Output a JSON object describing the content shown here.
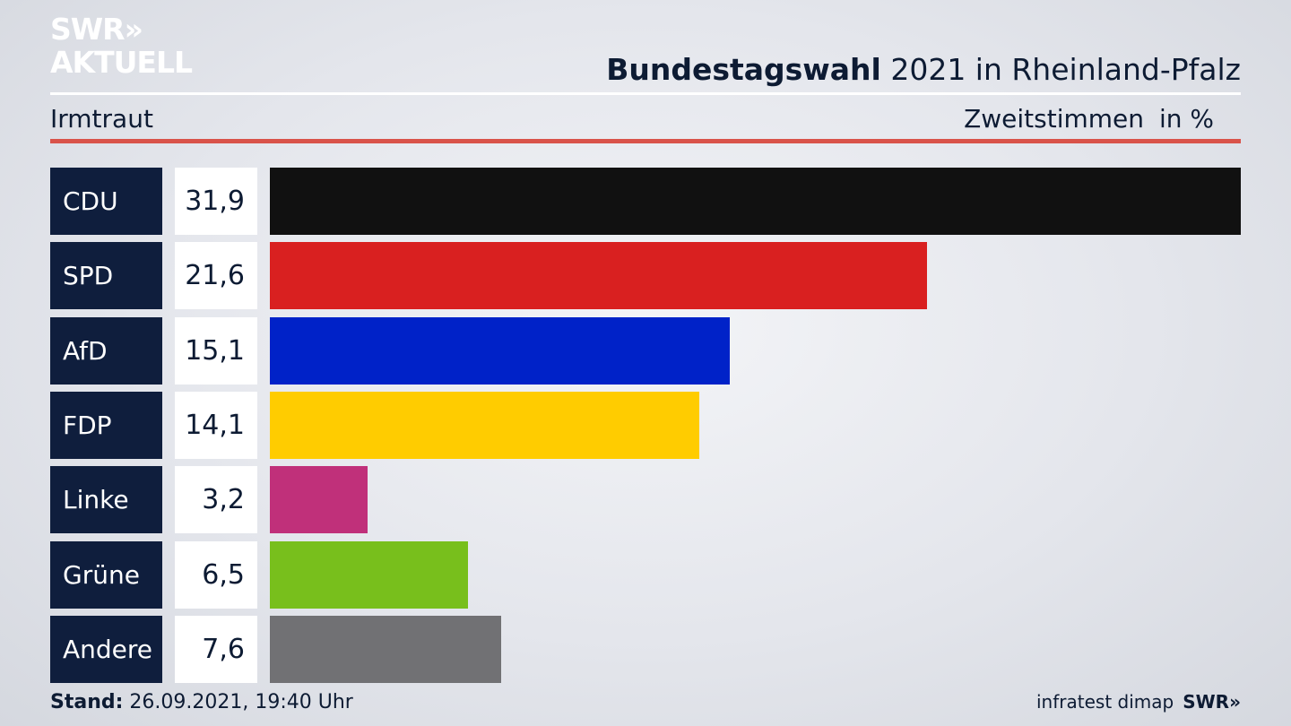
{
  "logo": {
    "line1": "SWR»",
    "line2": "AKTUELL"
  },
  "header": {
    "title_bold": "Bundestagswahl",
    "title_rest": " 2021 in Rheinland-Pfalz",
    "place": "Irmtraut",
    "vote_type": "Zweitstimmen",
    "unit": "in %"
  },
  "footer": {
    "stand_label": "Stand:",
    "stand_value": " 26.09.2021, 19:40 Uhr",
    "source": "infratest dimap",
    "brand": "SWR»"
  },
  "chart_data": {
    "type": "bar",
    "orientation": "horizontal",
    "categories": [
      "CDU",
      "SPD",
      "AfD",
      "FDP",
      "Linke",
      "Grüne",
      "Andere"
    ],
    "values": [
      31.9,
      21.6,
      15.1,
      14.1,
      3.2,
      6.5,
      7.6
    ],
    "value_labels": [
      "31,9",
      "21,6",
      "15,1",
      "14,1",
      "3,2",
      "6,5",
      "7,6"
    ],
    "colors": [
      "#111111",
      "#d92020",
      "#0022c8",
      "#ffcc00",
      "#c0307a",
      "#78bf1c",
      "#717174"
    ],
    "title": "Bundestagswahl 2021 in Rheinland-Pfalz",
    "xlabel": "",
    "ylabel": "",
    "xlim": [
      0,
      31.9
    ],
    "grid": false,
    "legend": "none"
  }
}
